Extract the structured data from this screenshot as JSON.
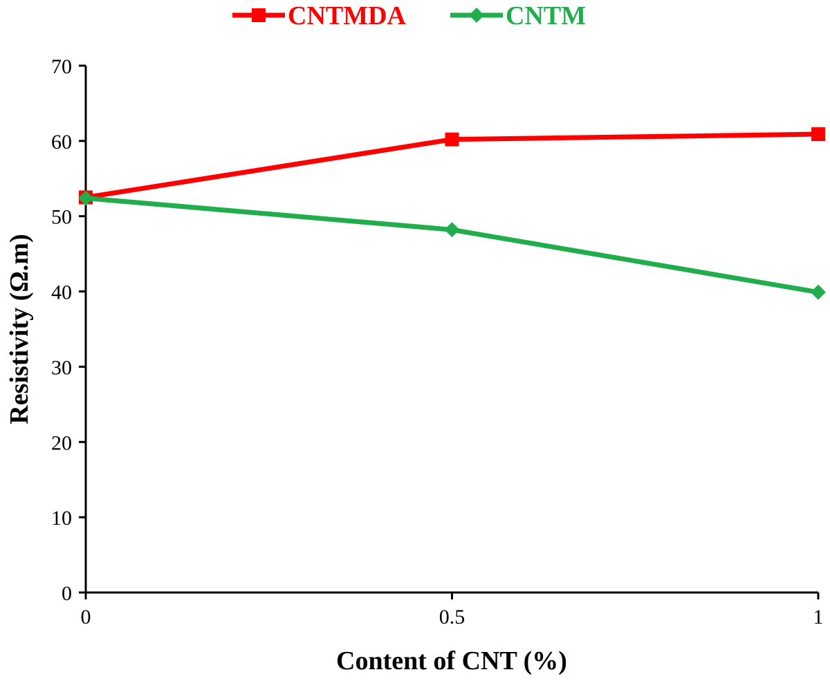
{
  "chart_data": {
    "type": "line",
    "x": [
      0,
      0.5,
      1
    ],
    "x_tick_labels": [
      "0",
      "0.5",
      "1"
    ],
    "xlabel": "Content of CNT (%)",
    "ylabel": "Resistivity (Ω.m)",
    "ylim": [
      0,
      70
    ],
    "y_ticks": [
      0,
      10,
      20,
      30,
      40,
      50,
      60,
      70
    ],
    "grid": false,
    "legend_position": "top-center",
    "series": [
      {
        "name": "CNTMDA",
        "values": [
          52.5,
          60.2,
          60.9
        ],
        "color": "#ff0000",
        "marker": "square"
      },
      {
        "name": "CNTM",
        "values": [
          52.4,
          48.2,
          39.9
        ],
        "color": "#1fae4b",
        "marker": "diamond"
      }
    ]
  }
}
